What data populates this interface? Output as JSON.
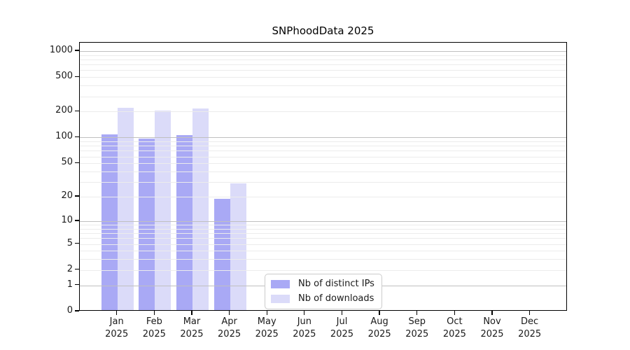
{
  "chart_data": {
    "type": "bar",
    "title": "SNPhoodData 2025",
    "categories": [
      "Jan 2025",
      "Feb 2025",
      "Mar 2025",
      "Apr 2025",
      "May 2025",
      "Jun 2025",
      "Jul 2025",
      "Aug 2025",
      "Sep 2025",
      "Oct 2025",
      "Nov 2025",
      "Dec 2025"
    ],
    "series": [
      {
        "name": "Nb of distinct IPs",
        "color": "#a9a9f5",
        "values": [
          105,
          93,
          102,
          18,
          0,
          0,
          0,
          0,
          0,
          0,
          0,
          0
        ]
      },
      {
        "name": "Nb of downloads",
        "color": "#dbdbf9",
        "values": [
          212,
          198,
          209,
          28,
          0,
          0,
          0,
          0,
          0,
          0,
          0,
          0
        ]
      }
    ],
    "y_ticks": [
      0,
      1,
      2,
      5,
      10,
      20,
      50,
      100,
      200,
      500,
      1000
    ],
    "y_scale": "log10(1+x)",
    "ylim": [
      0,
      1250
    ],
    "xlabel": "",
    "ylabel": "",
    "grid": true,
    "legend_position": "bottom-center-left",
    "colors": {
      "axis": "#000000",
      "text": "#1a1a1a",
      "grid_major": "#c0c0c0",
      "grid_minor": "#ececec",
      "legend_border": "#cccccc",
      "background": "#ffffff"
    }
  }
}
